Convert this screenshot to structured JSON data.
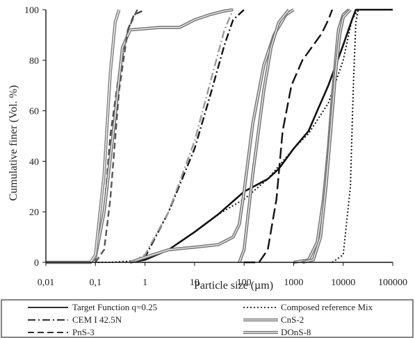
{
  "chart_data": {
    "type": "line",
    "title": "",
    "xlabel": "Particle size (µm)",
    "ylabel": "Cumulative finer (Vol. %)",
    "xscale": "log",
    "xlim": [
      0.01,
      100000
    ],
    "ylim": [
      0,
      100
    ],
    "xticks": [
      "0,01",
      "0,1",
      "1",
      "10",
      "100",
      "1000",
      "10000",
      "100000"
    ],
    "yticks": [
      "0",
      "20",
      "40",
      "60",
      "80",
      "100"
    ],
    "grid": false,
    "legend_position": "bottom",
    "series": [
      {
        "name": "Target Function q=0.25",
        "color": "#111111",
        "style": "solid",
        "width": 2.6,
        "points": [
          [
            0.5,
            0
          ],
          [
            1,
            1
          ],
          [
            3,
            5
          ],
          [
            10,
            12
          ],
          [
            30,
            19
          ],
          [
            100,
            28
          ],
          [
            300,
            33
          ],
          [
            500,
            37
          ],
          [
            1000,
            45
          ],
          [
            2000,
            52
          ],
          [
            3000,
            60
          ],
          [
            5000,
            70
          ],
          [
            10000,
            86
          ],
          [
            15000,
            96
          ],
          [
            18000,
            100
          ],
          [
            100000,
            100
          ]
        ]
      },
      {
        "name": "Composed reference Mix",
        "color": "#111111",
        "style": "dotted",
        "width": 2,
        "points": [
          [
            0.01,
            0
          ],
          [
            0.05,
            0
          ],
          [
            0.2,
            0
          ],
          [
            0.5,
            0.5
          ],
          [
            1,
            1.5
          ],
          [
            3,
            5
          ],
          [
            10,
            12
          ],
          [
            30,
            19
          ],
          [
            100,
            25
          ],
          [
            300,
            33
          ],
          [
            1000,
            45
          ],
          [
            2000,
            51
          ],
          [
            5000,
            63
          ],
          [
            10000,
            80
          ],
          [
            15000,
            96
          ],
          [
            20000,
            100
          ],
          [
            100000,
            100
          ]
        ]
      },
      {
        "name": "CEM I 42.5N",
        "color": "#111111",
        "style": "dashdot",
        "width": 2.4,
        "points": [
          [
            0.5,
            0
          ],
          [
            0.8,
            1
          ],
          [
            1,
            2
          ],
          [
            3,
            20
          ],
          [
            10,
            45
          ],
          [
            20,
            65
          ],
          [
            40,
            86
          ],
          [
            60,
            96
          ],
          [
            100,
            100
          ]
        ]
      },
      {
        "name": "CnS-2",
        "color": "#777777",
        "style": "double",
        "width": 2,
        "points": [
          [
            0.5,
            0
          ],
          [
            0.7,
            1
          ],
          [
            1,
            2
          ],
          [
            3,
            5
          ],
          [
            10,
            6
          ],
          [
            30,
            7
          ],
          [
            60,
            10
          ],
          [
            80,
            15
          ],
          [
            100,
            28
          ],
          [
            150,
            55
          ],
          [
            250,
            78
          ],
          [
            400,
            90
          ],
          [
            700,
            98
          ],
          [
            1000,
            100
          ]
        ]
      },
      {
        "name": "PnS-3",
        "color": "#444444",
        "style": "dashed",
        "width": 2.4,
        "points": [
          [
            0.01,
            0
          ],
          [
            0.07,
            0
          ],
          [
            0.1,
            1
          ],
          [
            0.15,
            20
          ],
          [
            0.2,
            50
          ],
          [
            0.3,
            75
          ],
          [
            0.45,
            92
          ],
          [
            0.6,
            98
          ],
          [
            1,
            100
          ]
        ]
      },
      {
        "name": "DOnS-8",
        "color": "#777777",
        "style": "double",
        "width": 2,
        "points": [
          [
            0.01,
            0
          ],
          [
            0.08,
            0
          ],
          [
            0.1,
            2
          ],
          [
            0.15,
            20
          ],
          [
            0.25,
            58
          ],
          [
            0.35,
            85
          ],
          [
            0.5,
            92
          ],
          [
            2,
            93
          ],
          [
            5,
            93
          ],
          [
            10,
            96
          ],
          [
            20,
            98
          ],
          [
            40,
            99.5
          ],
          [
            60,
            100
          ]
        ]
      },
      {
        "name": "",
        "color": "#888888",
        "style": "double",
        "width": 2,
        "points": [
          [
            0.08,
            0
          ],
          [
            0.1,
            3
          ],
          [
            0.15,
            35
          ],
          [
            0.2,
            75
          ],
          [
            0.25,
            95
          ],
          [
            0.3,
            100
          ]
        ]
      },
      {
        "name": "",
        "color": "#555555",
        "style": "dashed",
        "width": 2.4,
        "points": [
          [
            0.1,
            0
          ],
          [
            0.15,
            5
          ],
          [
            0.2,
            25
          ],
          [
            0.3,
            68
          ],
          [
            0.45,
            92
          ],
          [
            0.7,
            100
          ]
        ]
      },
      {
        "name": "",
        "color": "#999999",
        "style": "dashdot",
        "width": 2.4,
        "points": [
          [
            0.5,
            0
          ],
          [
            1,
            3
          ],
          [
            3,
            20
          ],
          [
            10,
            48
          ],
          [
            20,
            70
          ],
          [
            40,
            92
          ],
          [
            60,
            100
          ]
        ]
      },
      {
        "name": "",
        "color": "#777777",
        "style": "double",
        "width": 2,
        "points": [
          [
            80,
            0
          ],
          [
            100,
            5
          ],
          [
            150,
            35
          ],
          [
            250,
            68
          ],
          [
            350,
            85
          ],
          [
            500,
            95
          ],
          [
            800,
            100
          ]
        ]
      },
      {
        "name": "",
        "color": "#111111",
        "style": "longdash",
        "width": 2.4,
        "points": [
          [
            100,
            0
          ],
          [
            200,
            0
          ],
          [
            300,
            5
          ],
          [
            450,
            25
          ],
          [
            600,
            52
          ],
          [
            900,
            70
          ],
          [
            1500,
            80
          ],
          [
            2500,
            86
          ],
          [
            3500,
            90
          ],
          [
            4000,
            92
          ],
          [
            5000,
            96
          ],
          [
            6000,
            100
          ]
        ]
      },
      {
        "name": "",
        "color": "#777777",
        "style": "double",
        "width": 2,
        "points": [
          [
            1000,
            0
          ],
          [
            2000,
            1
          ],
          [
            3000,
            8
          ],
          [
            4000,
            25
          ],
          [
            5000,
            45
          ],
          [
            6000,
            65
          ],
          [
            7000,
            80
          ],
          [
            8000,
            92
          ],
          [
            10000,
            98
          ],
          [
            13000,
            100
          ]
        ]
      },
      {
        "name": "",
        "color": "#777777",
        "style": "double",
        "width": 2,
        "points": [
          [
            1500,
            0
          ],
          [
            2500,
            1
          ],
          [
            3500,
            10
          ],
          [
            4500,
            30
          ],
          [
            5500,
            50
          ],
          [
            7000,
            75
          ],
          [
            8500,
            90
          ],
          [
            10000,
            97
          ],
          [
            14000,
            100
          ]
        ]
      },
      {
        "name": "",
        "color": "#111111",
        "style": "dotted",
        "width": 2,
        "points": [
          [
            6000,
            0
          ],
          [
            10000,
            3
          ],
          [
            14000,
            30
          ],
          [
            16000,
            70
          ],
          [
            18000,
            95
          ],
          [
            20000,
            100
          ]
        ]
      }
    ],
    "legend": [
      {
        "label": "Target Function q=0.25",
        "style": "solid"
      },
      {
        "label": "Composed reference Mix",
        "style": "dotted"
      },
      {
        "label": "CEM I 42.5N",
        "style": "dashdot"
      },
      {
        "label": "CnS-2",
        "style": "double"
      },
      {
        "label": "PnS-3",
        "style": "dashed"
      },
      {
        "label": "DOnS-8",
        "style": "double"
      }
    ]
  }
}
